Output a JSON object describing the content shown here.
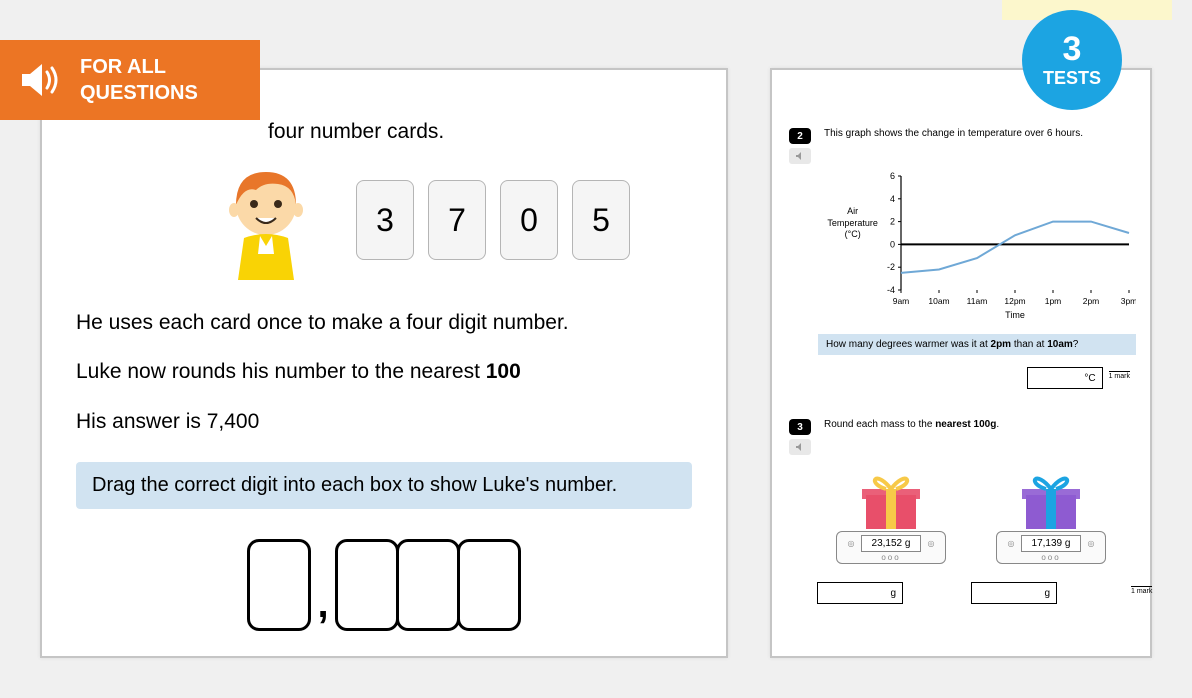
{
  "banner": {
    "line1": "FOR ALL",
    "line2": "QUESTIONS"
  },
  "badge": {
    "number": "3",
    "label": "TESTS"
  },
  "left": {
    "intro_tail": "four number cards.",
    "cards": [
      "3",
      "7",
      "0",
      "5"
    ],
    "p1": "He uses each card once to make a four digit number.",
    "p2_pre": "Luke now rounds his number to the nearest ",
    "p2_bold": "100",
    "p3": "His answer is 7,400",
    "instruction": "Drag the correct digit into each box to show Luke's number.",
    "comma": ","
  },
  "right": {
    "q2": {
      "num": "2",
      "text": "This graph shows the change in temperature over 6 hours.",
      "y_label_l1": "Air",
      "y_label_l2": "Temperature",
      "y_label_l3": "(°C)",
      "x_label": "Time",
      "y_ticks": [
        "6",
        "4",
        "2",
        "0",
        "-2",
        "-4"
      ],
      "x_ticks": [
        "9am",
        "10am",
        "11am",
        "12pm",
        "1pm",
        "2pm",
        "3pm"
      ],
      "sub_q_a": "How many degrees warmer was it at ",
      "sub_q_b": "2pm",
      "sub_q_c": " than at ",
      "sub_q_d": "10am",
      "sub_q_e": "?",
      "unit": "°C",
      "mark": "1 mark",
      "chart": {
        "points_y": [
          -2.5,
          -2.2,
          -1.2,
          0.8,
          2,
          2,
          1
        ],
        "line_color": "#6fa8d6",
        "axis_color": "#000000",
        "grid_color": "#cccccc"
      }
    },
    "q3": {
      "num": "3",
      "text_a": "Round each mass to the ",
      "text_b": "nearest 100g",
      "text_c": ".",
      "gift1": {
        "box": "#e84f6a",
        "ribbon": "#f7c948",
        "mass": "23,152 g"
      },
      "gift2": {
        "box": "#8e5bd1",
        "ribbon": "#1ca4e2",
        "mass": "17,139 g"
      },
      "unit": "g",
      "mark": "1 mark",
      "dots": "ooo",
      "side": "◎"
    }
  },
  "colors": {
    "orange": "#ec7524",
    "blue_badge": "#1ca4e2",
    "instruction_bg": "#d1e3f1"
  }
}
